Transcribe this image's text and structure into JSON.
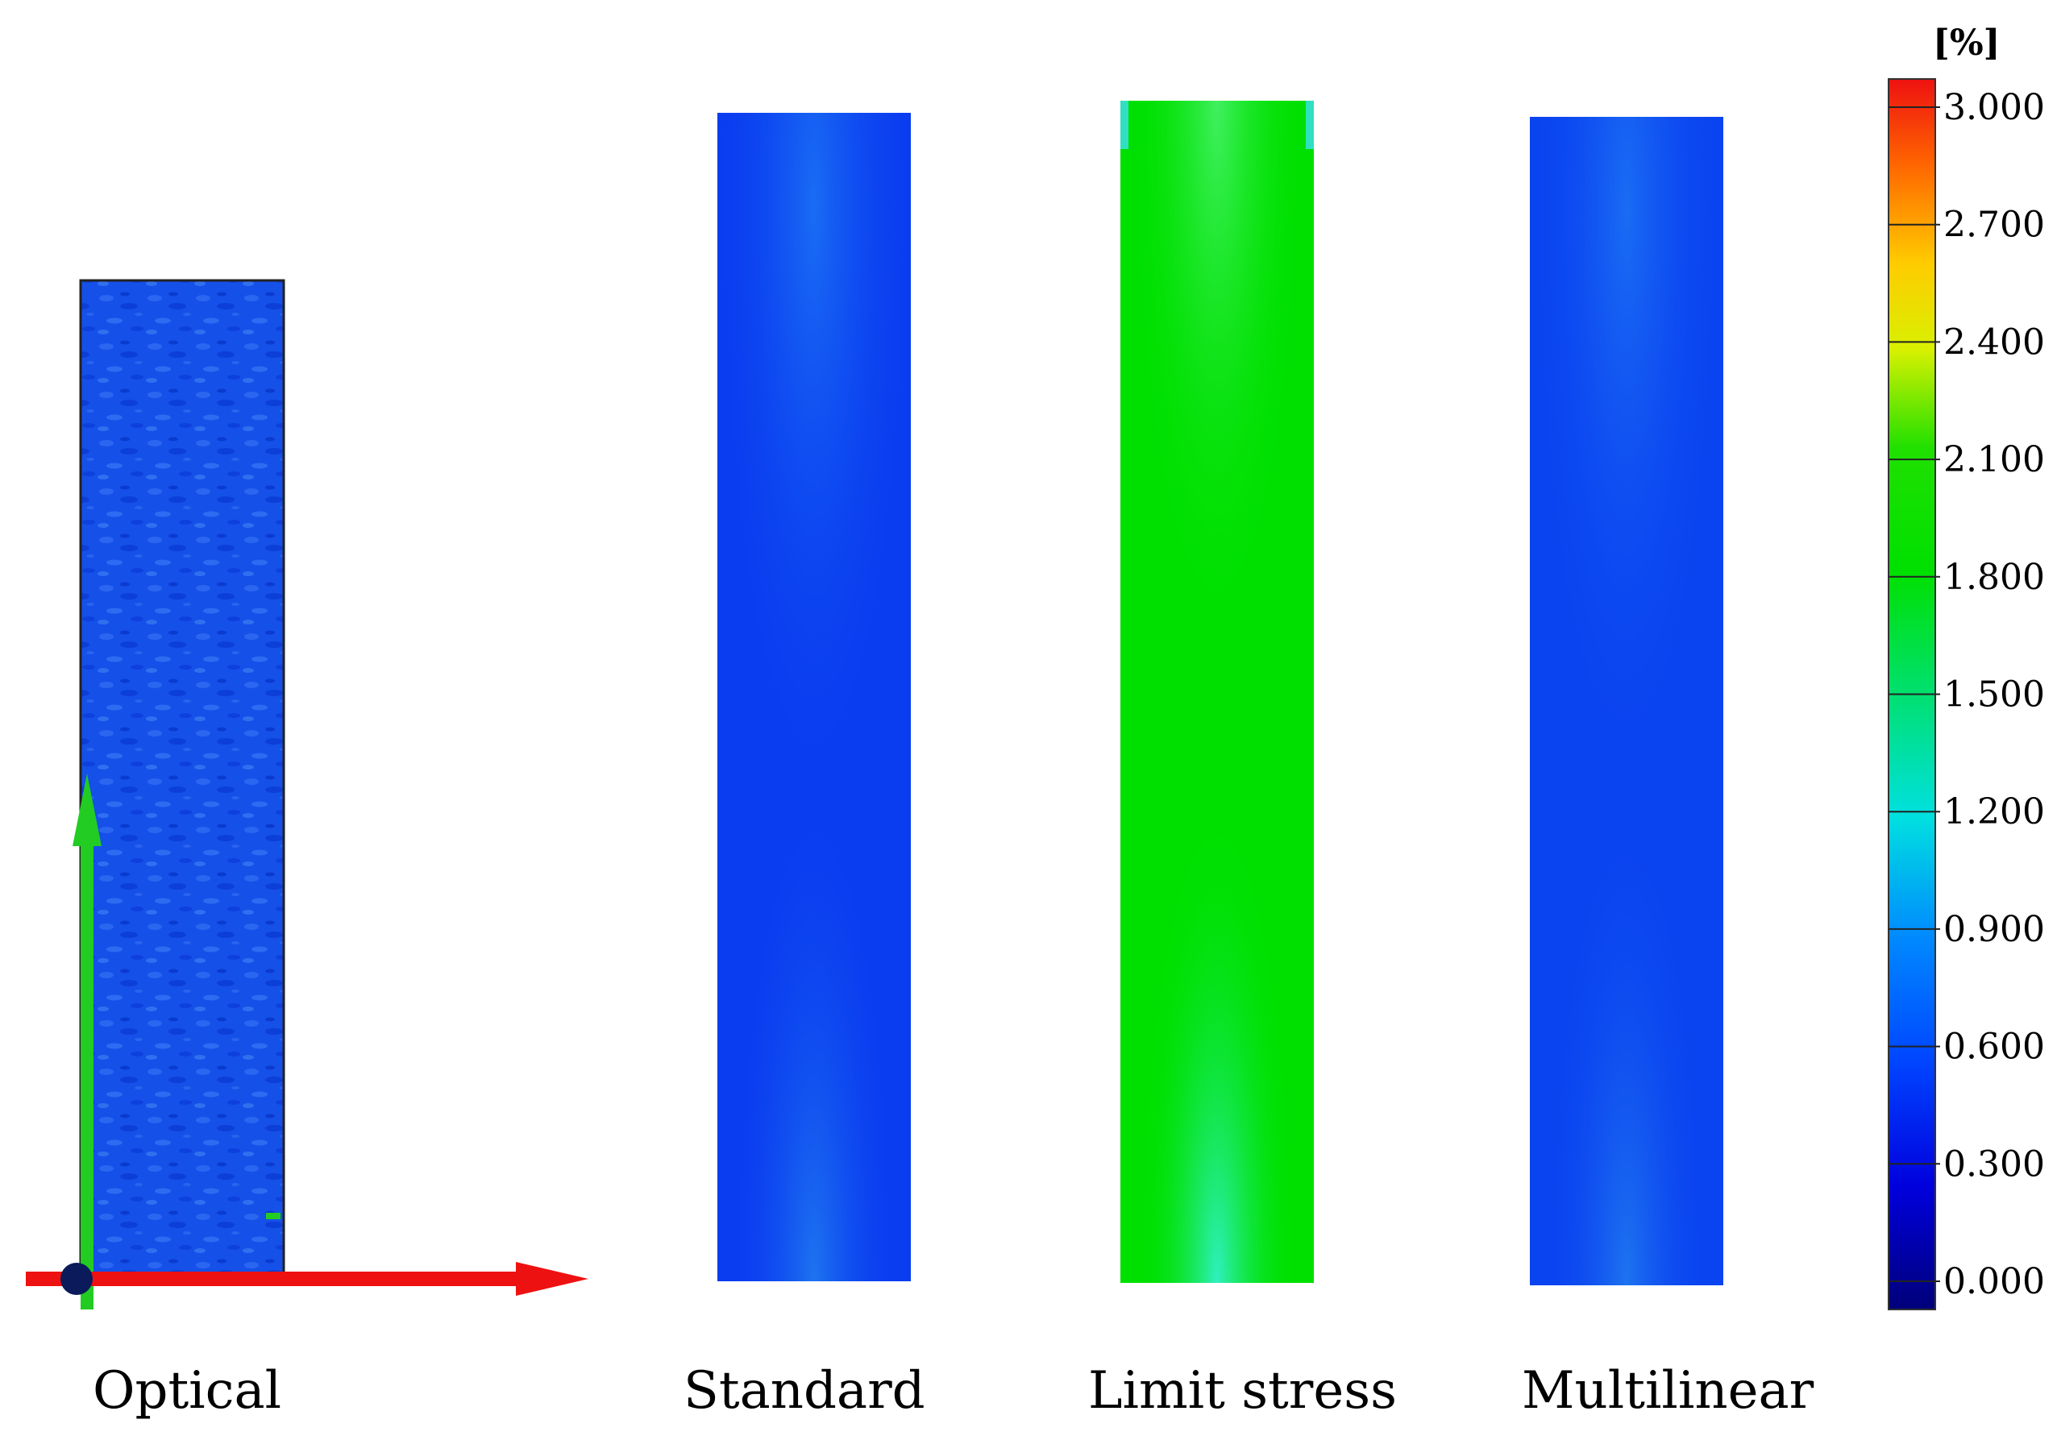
{
  "panels": [
    {
      "label": "Optical",
      "strain_level": 0.6
    },
    {
      "label": "Standard",
      "strain_level": 0.6
    },
    {
      "label": "Limit stress",
      "strain_level": 1.8
    },
    {
      "label": "Multilinear",
      "strain_level": 0.6
    }
  ],
  "colorbar": {
    "unit": "[%]",
    "ticks": [
      "3.000",
      "2.700",
      "2.400",
      "2.100",
      "1.800",
      "1.500",
      "1.200",
      "0.900",
      "0.600",
      "0.300",
      "0.000"
    ],
    "range": [
      0.0,
      3.0
    ],
    "colors": {
      "max": "#ee1111",
      "upper": "#ff8800",
      "mid_high": "#ffee00",
      "mid": "#00e000",
      "mid_low": "#00e0e0",
      "low": "#0066ff",
      "min": "#00007a"
    }
  },
  "axes_triad": {
    "x_axis_color": "#ee1111",
    "y_axis_color": "#22cc22",
    "origin_color": "#0a1a5a"
  }
}
